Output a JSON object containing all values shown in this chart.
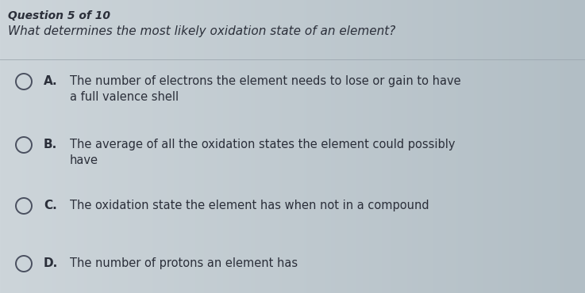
{
  "header": "Question 5 of 10",
  "question": "What determines the most likely oxidation state of an element?",
  "options": [
    {
      "letter": "A.",
      "text": "The number of electrons the element needs to lose or gain to have\na full valence shell"
    },
    {
      "letter": "B.",
      "text": "The average of all the oxidation states the element could possibly\nhave"
    },
    {
      "letter": "C.",
      "text": "The oxidation state the element has when not in a compound"
    },
    {
      "letter": "D.",
      "text": "The number of protons an element has"
    }
  ],
  "bg_color": "#c8d0d5",
  "text_color": "#2b2f3a",
  "header_color": "#2b2f3a",
  "question_color": "#2b2f3a",
  "divider_color": "#9aa5ad",
  "circle_edge_color": "#4a5060",
  "circle_face_color": "none",
  "header_fontsize": 10,
  "question_fontsize": 11,
  "option_letter_fontsize": 11,
  "option_text_fontsize": 10.5
}
